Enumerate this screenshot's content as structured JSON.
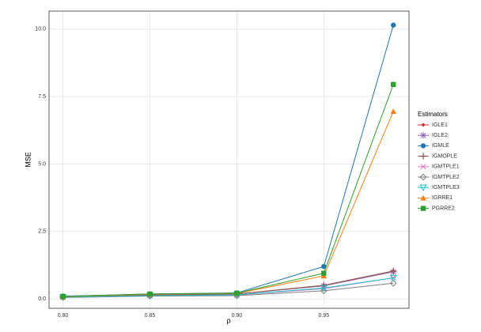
{
  "chart_data": {
    "type": "line",
    "x_label": "ρ",
    "y_label": "MSE",
    "legend_title": "Estimators",
    "x": [
      0.8,
      0.85,
      0.9,
      0.95,
      0.99
    ],
    "xlim": [
      0.792,
      0.999
    ],
    "xticks": [
      {
        "value": 0.8,
        "label": "0.80"
      },
      {
        "value": 0.85,
        "label": "0.85"
      },
      {
        "value": 0.9,
        "label": "0.90"
      },
      {
        "value": 0.95,
        "label": "0.95"
      }
    ],
    "ylim": [
      -0.35,
      10.67
    ],
    "yticks": [
      {
        "value": 0,
        "label": "0.0"
      },
      2.5,
      {
        "value": 5,
        "label": "5.0"
      },
      7.5,
      {
        "value": 10,
        "label": "10.0"
      }
    ],
    "grid": true,
    "legend": "right",
    "series": [
      {
        "name": "IGLE1",
        "color": "#d62728",
        "marker": "diamond-small",
        "values": [
          0.08,
          0.15,
          0.18,
          0.5,
          1.03
        ]
      },
      {
        "name": "IGLE2",
        "color": "#9467bd",
        "marker": "asterisk",
        "values": [
          0.08,
          0.15,
          0.18,
          0.48,
          1.0
        ]
      },
      {
        "name": "IGMLE",
        "color": "#1f77b4",
        "marker": "circle",
        "values": [
          0.1,
          0.18,
          0.22,
          1.2,
          10.15
        ]
      },
      {
        "name": "IGMOPLE",
        "color": "#8c564b",
        "marker": "plus",
        "values": [
          0.08,
          0.15,
          0.18,
          0.5,
          1.03
        ]
      },
      {
        "name": "IGMTPLE1",
        "color": "#e377c2",
        "marker": "cross",
        "values": [
          0.06,
          0.12,
          0.14,
          0.38,
          0.78
        ]
      },
      {
        "name": "IGMTPLE2",
        "color": "#7f7f7f",
        "marker": "diamond",
        "values": [
          0.05,
          0.1,
          0.12,
          0.3,
          0.58
        ]
      },
      {
        "name": "IGMTPLE3",
        "color": "#17becf",
        "marker": "triangle-down",
        "values": [
          0.06,
          0.12,
          0.15,
          0.4,
          0.78
        ]
      },
      {
        "name": "IGRRE1",
        "color": "#ff7f0e",
        "marker": "triangle",
        "values": [
          0.08,
          0.17,
          0.2,
          0.85,
          6.95
        ]
      },
      {
        "name": "PGRRE2",
        "color": "#2ca02c",
        "marker": "square",
        "values": [
          0.09,
          0.18,
          0.21,
          0.95,
          7.95
        ]
      }
    ]
  }
}
